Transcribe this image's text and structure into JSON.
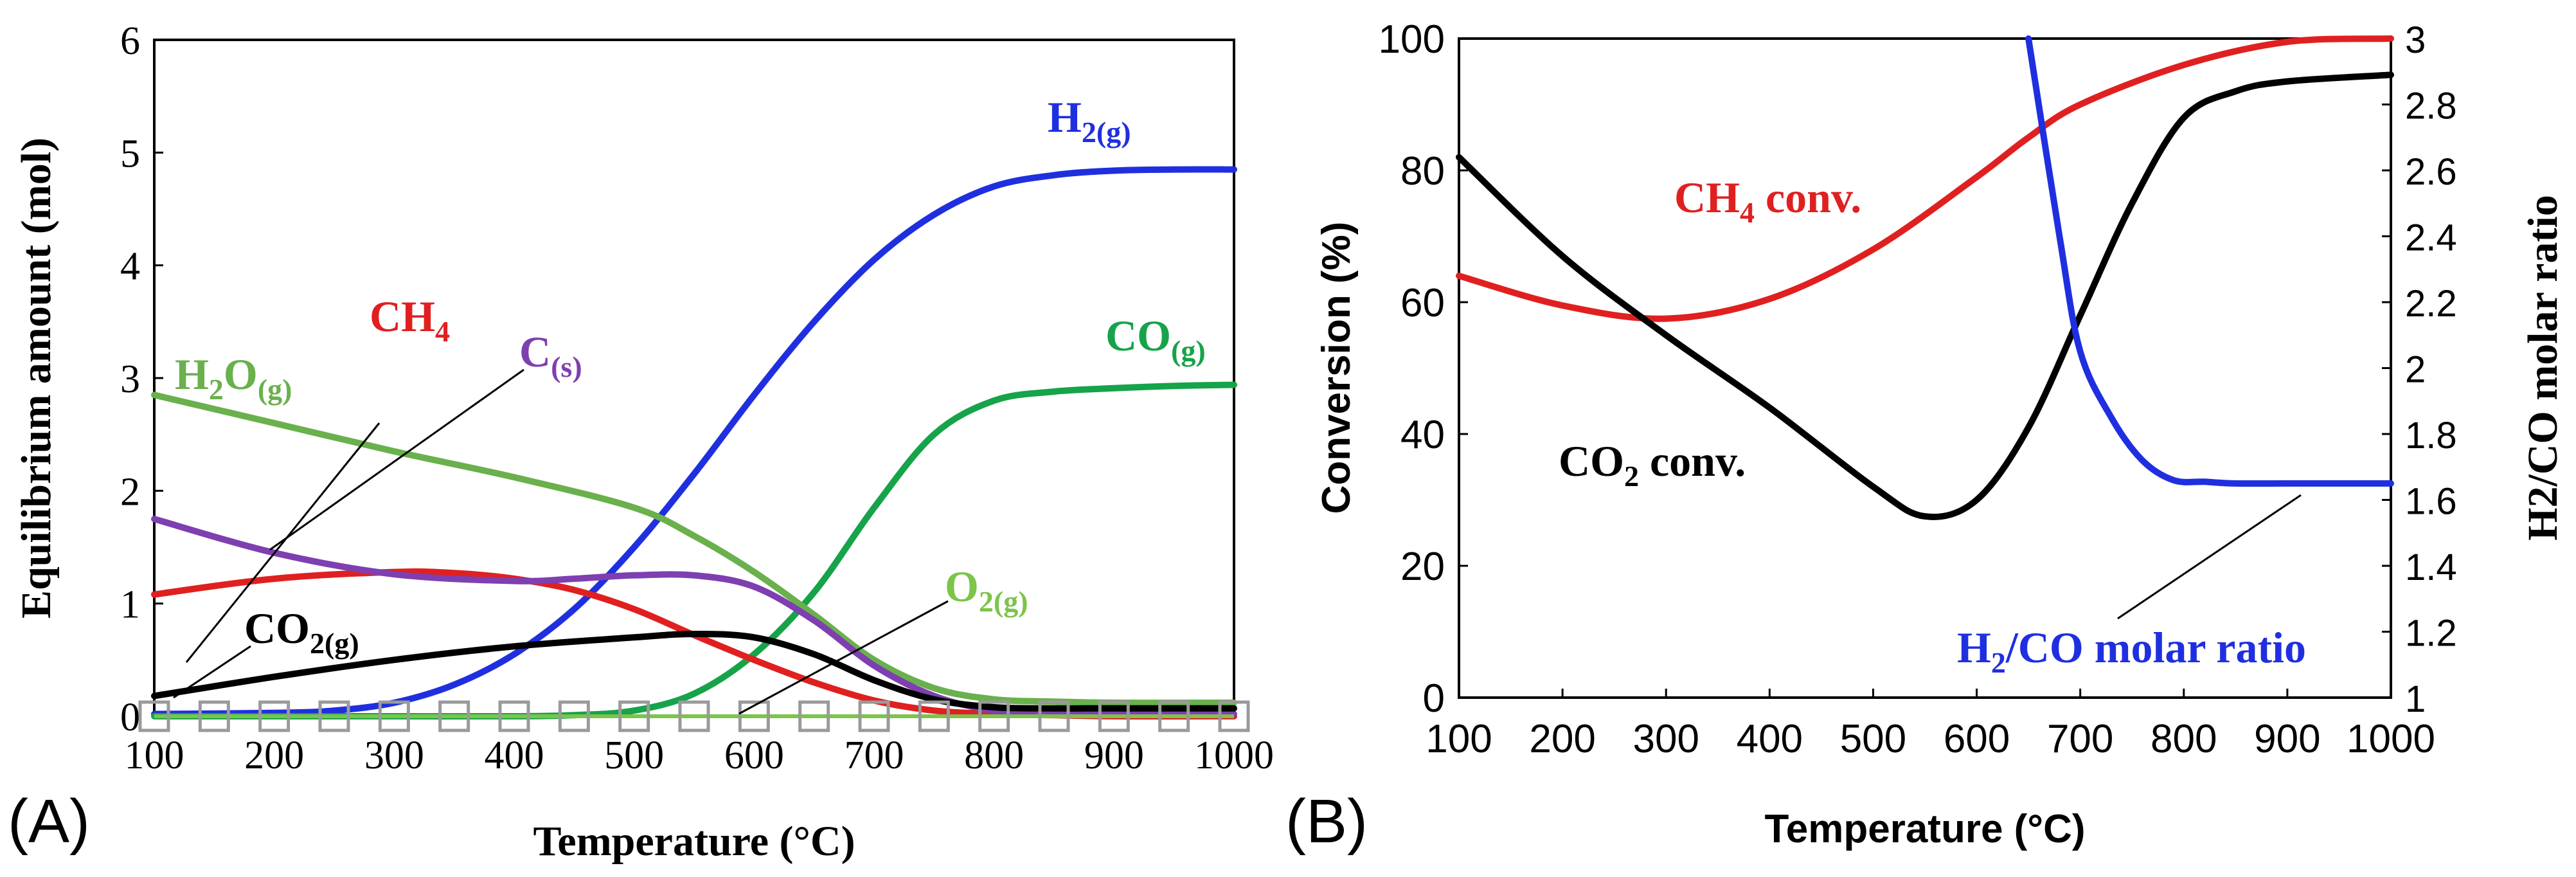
{
  "panels": {
    "a": {
      "tag": "(A)"
    },
    "b": {
      "tag": "(B)"
    }
  },
  "chart_data": [
    {
      "type": "line",
      "panel": "(A)",
      "xlabel": "Temperature (°C)",
      "ylabel": "Equilibrium amount (mol)",
      "xlim": [
        100,
        1000
      ],
      "ylim": [
        0,
        6
      ],
      "x_ticks": [
        "100",
        "200",
        "300",
        "400",
        "500",
        "600",
        "700",
        "800",
        "900",
        "1000"
      ],
      "y_ticks": [
        "0",
        "1",
        "2",
        "3",
        "4",
        "5",
        "6"
      ],
      "grid": false,
      "series": [
        {
          "name": "H2(g)",
          "label_main": "H",
          "label_sub": "2(g)",
          "color": "#1f2fe0",
          "x": [
            100,
            200,
            250,
            300,
            350,
            400,
            450,
            500,
            550,
            600,
            650,
            700,
            750,
            800,
            850,
            900,
            950,
            1000
          ],
          "y": [
            0.02,
            0.03,
            0.05,
            0.12,
            0.28,
            0.55,
            0.95,
            1.5,
            2.15,
            2.85,
            3.5,
            4.05,
            4.45,
            4.7,
            4.8,
            4.84,
            4.85,
            4.85
          ]
        },
        {
          "name": "CO(g)",
          "label_main": "CO",
          "label_sub": "(g)",
          "color": "#16a34a",
          "x": [
            100,
            200,
            300,
            400,
            450,
            500,
            550,
            600,
            650,
            700,
            750,
            800,
            850,
            900,
            950,
            1000
          ],
          "y": [
            0.0,
            0.0,
            0.0,
            0.0,
            0.01,
            0.05,
            0.2,
            0.55,
            1.1,
            1.85,
            2.5,
            2.8,
            2.88,
            2.91,
            2.93,
            2.94
          ]
        },
        {
          "name": "H2O(g)",
          "label_main": "H",
          "label_sub": "2",
          "label_main2": "O",
          "label_sub2": "(g)",
          "color": "#6ab04c",
          "x": [
            100,
            200,
            300,
            400,
            500,
            550,
            600,
            650,
            700,
            750,
            800,
            850,
            900,
            1000
          ],
          "y": [
            2.85,
            2.6,
            2.35,
            2.12,
            1.85,
            1.6,
            1.28,
            0.9,
            0.5,
            0.25,
            0.15,
            0.13,
            0.12,
            0.12
          ]
        },
        {
          "name": "CH4",
          "label_main": "CH",
          "label_sub": "4",
          "color": "#e02020",
          "x": [
            100,
            200,
            300,
            350,
            400,
            450,
            500,
            550,
            600,
            650,
            700,
            750,
            800,
            850,
            900,
            1000
          ],
          "y": [
            1.08,
            1.22,
            1.28,
            1.27,
            1.22,
            1.12,
            0.95,
            0.72,
            0.5,
            0.3,
            0.14,
            0.05,
            0.02,
            0.01,
            0.0,
            0.0
          ]
        },
        {
          "name": "C(s)",
          "label_main": "C",
          "label_sub": "(s)",
          "color": "#7e3fb0",
          "x": [
            100,
            200,
            300,
            400,
            450,
            500,
            550,
            600,
            650,
            700,
            750,
            800,
            850,
            900,
            1000
          ],
          "y": [
            1.75,
            1.45,
            1.26,
            1.2,
            1.22,
            1.25,
            1.25,
            1.15,
            0.85,
            0.45,
            0.18,
            0.05,
            0.02,
            0.02,
            0.02
          ]
        },
        {
          "name": "CO2(g)",
          "label_main": "CO",
          "label_sub": "2(g)",
          "color": "#000000",
          "x": [
            100,
            200,
            300,
            400,
            500,
            550,
            600,
            650,
            700,
            750,
            800,
            850,
            900,
            1000
          ],
          "y": [
            0.18,
            0.35,
            0.5,
            0.62,
            0.7,
            0.73,
            0.7,
            0.55,
            0.32,
            0.15,
            0.08,
            0.07,
            0.07,
            0.07
          ]
        },
        {
          "name": "O2(g)",
          "label_main": "O",
          "label_sub": "2(g)",
          "color": "#9a9a9a",
          "marker": "hollow-square",
          "x": [
            100,
            150,
            200,
            250,
            300,
            350,
            400,
            450,
            500,
            550,
            600,
            650,
            700,
            750,
            800,
            850,
            900,
            950,
            1000
          ],
          "y": [
            0,
            0,
            0,
            0,
            0,
            0,
            0,
            0,
            0,
            0,
            0,
            0,
            0,
            0,
            0,
            0,
            0,
            0,
            0
          ]
        }
      ]
    },
    {
      "type": "line",
      "panel": "(B)",
      "xlabel": "Temperature (°C)",
      "ylabel": "Conversion (%)",
      "y2label": "H2/CO molar ratio",
      "xlim": [
        100,
        1000
      ],
      "ylim": [
        0,
        100
      ],
      "y2lim": [
        1,
        3
      ],
      "x_ticks": [
        "100",
        "200",
        "300",
        "400",
        "500",
        "600",
        "700",
        "800",
        "900",
        "1000"
      ],
      "y_ticks": [
        "0",
        "20",
        "40",
        "60",
        "80",
        "100"
      ],
      "y2_ticks": [
        "1",
        "1.2",
        "1.4",
        "1.6",
        "1.8",
        "2",
        "2.2",
        "2.4",
        "2.6",
        "2.8",
        "3"
      ],
      "grid": false,
      "series": [
        {
          "name": "CH4 conv.",
          "label_main": "CH",
          "label_sub": "4",
          "label_tail": " conv.",
          "color": "#e02020",
          "axis": "left",
          "x": [
            100,
            200,
            300,
            400,
            500,
            600,
            650,
            700,
            800,
            900,
            1000
          ],
          "y": [
            64,
            59.5,
            57.5,
            60.5,
            68,
            79,
            85,
            90,
            96,
            99.5,
            100
          ]
        },
        {
          "name": "CO2 conv.",
          "label_main": "CO",
          "label_sub": "2",
          "label_tail": " conv.",
          "color": "#000000",
          "axis": "left",
          "x": [
            100,
            200,
            300,
            400,
            500,
            550,
            600,
            650,
            700,
            750,
            800,
            850,
            900,
            1000
          ],
          "y": [
            82,
            67,
            55,
            44,
            32,
            27.5,
            30,
            41,
            58,
            75,
            88,
            92,
            93.5,
            94.5
          ]
        },
        {
          "name": "H2/CO molar ratio",
          "label_main": "H",
          "label_sub": "2",
          "label_tail": "/CO molar ratio",
          "color": "#1f2fe0",
          "axis": "right",
          "x": [
            650,
            680,
            700,
            730,
            760,
            790,
            820,
            850,
            900,
            1000
          ],
          "y": [
            3.0,
            2.4,
            2.05,
            1.85,
            1.72,
            1.66,
            1.655,
            1.65,
            1.65,
            1.65
          ]
        }
      ]
    }
  ]
}
